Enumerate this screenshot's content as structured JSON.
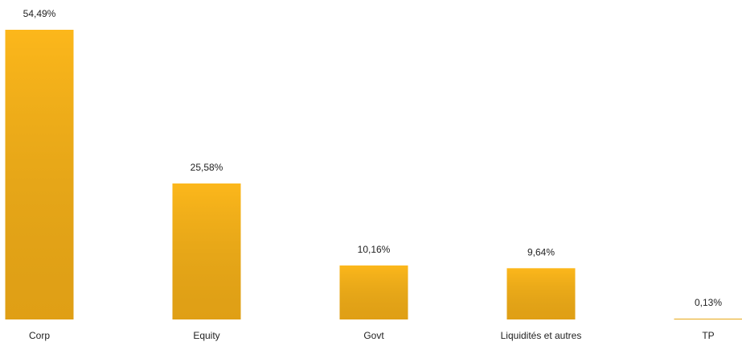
{
  "chart_data": {
    "type": "bar",
    "categories": [
      "Corp",
      "Equity",
      "Govt",
      "Liquidités et autres",
      "TP"
    ],
    "values": [
      54.49,
      25.58,
      10.16,
      9.64,
      0.13
    ],
    "value_labels": [
      "54,49%",
      "25,58%",
      "10,16%",
      "9,64%",
      "0,13%"
    ],
    "color": "#fcb71b"
  }
}
